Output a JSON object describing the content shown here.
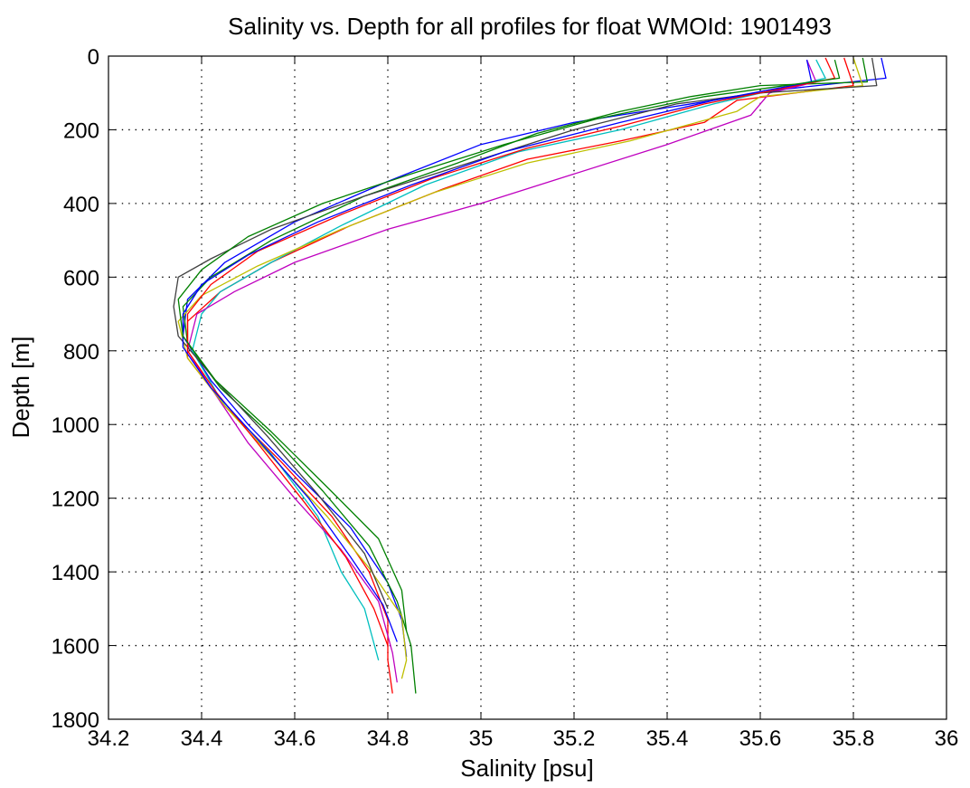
{
  "chart_data": {
    "type": "line",
    "title": "Salinity vs. Depth for all profiles for float WMOId: 1901493",
    "xlabel": "Salinity [psu]",
    "ylabel": "Depth [m]",
    "xlim": [
      34.2,
      36
    ],
    "ylim": [
      0,
      1800
    ],
    "y_inverted": true,
    "grid": true,
    "x_ticks": [
      "34.2",
      "34.4",
      "34.6",
      "34.8",
      "35",
      "35.2",
      "35.4",
      "35.6",
      "35.8",
      "36"
    ],
    "y_ticks": [
      "0",
      "200",
      "400",
      "600",
      "800",
      "1000",
      "1200",
      "1400",
      "1600",
      "1800"
    ],
    "series": [
      {
        "color": "#0000ff",
        "points": [
          [
            35.86,
            5
          ],
          [
            35.87,
            60
          ],
          [
            35.65,
            90
          ],
          [
            35.4,
            140
          ],
          [
            35.2,
            180
          ],
          [
            35.0,
            240
          ],
          [
            34.8,
            340
          ],
          [
            34.6,
            450
          ],
          [
            34.45,
            560
          ],
          [
            34.37,
            660
          ],
          [
            34.36,
            760
          ],
          [
            34.42,
            880
          ],
          [
            34.5,
            1000
          ],
          [
            34.6,
            1130
          ],
          [
            34.72,
            1280
          ],
          [
            34.8,
            1430
          ],
          [
            34.83,
            1530
          ],
          [
            34.84,
            1630
          ]
        ]
      },
      {
        "color": "#008000",
        "points": [
          [
            35.82,
            5
          ],
          [
            35.83,
            70
          ],
          [
            35.6,
            80
          ],
          [
            35.45,
            110
          ],
          [
            35.3,
            150
          ],
          [
            35.12,
            210
          ],
          [
            34.95,
            290
          ],
          [
            34.75,
            380
          ],
          [
            34.55,
            500
          ],
          [
            34.42,
            600
          ],
          [
            34.36,
            680
          ],
          [
            34.37,
            780
          ],
          [
            34.44,
            900
          ],
          [
            34.55,
            1030
          ],
          [
            34.66,
            1180
          ],
          [
            34.76,
            1330
          ],
          [
            34.82,
            1480
          ],
          [
            34.85,
            1600
          ],
          [
            34.86,
            1730
          ]
        ]
      },
      {
        "color": "#ff0000",
        "points": [
          [
            35.78,
            5
          ],
          [
            35.8,
            80
          ],
          [
            35.55,
            120
          ],
          [
            35.48,
            180
          ],
          [
            35.3,
            230
          ],
          [
            35.1,
            280
          ],
          [
            34.92,
            360
          ],
          [
            34.72,
            460
          ],
          [
            34.55,
            560
          ],
          [
            34.44,
            640
          ],
          [
            34.37,
            720
          ],
          [
            34.37,
            820
          ],
          [
            34.45,
            950
          ],
          [
            34.57,
            1100
          ],
          [
            34.68,
            1250
          ],
          [
            34.76,
            1400
          ],
          [
            34.8,
            1530
          ],
          [
            34.8,
            1640
          ],
          [
            34.81,
            1730
          ]
        ]
      },
      {
        "color": "#00bfbf",
        "points": [
          [
            35.72,
            10
          ],
          [
            35.74,
            60
          ],
          [
            35.5,
            130
          ],
          [
            35.3,
            200
          ],
          [
            35.08,
            260
          ],
          [
            34.88,
            350
          ],
          [
            34.7,
            460
          ],
          [
            34.55,
            560
          ],
          [
            34.44,
            640
          ],
          [
            34.4,
            700
          ],
          [
            34.38,
            800
          ],
          [
            34.44,
            930
          ],
          [
            34.55,
            1080
          ],
          [
            34.65,
            1250
          ],
          [
            34.7,
            1400
          ],
          [
            34.75,
            1500
          ],
          [
            34.78,
            1640
          ]
        ]
      },
      {
        "color": "#bf00bf",
        "points": [
          [
            35.7,
            10
          ],
          [
            35.72,
            70
          ],
          [
            35.62,
            100
          ],
          [
            35.58,
            160
          ],
          [
            35.4,
            240
          ],
          [
            35.2,
            320
          ],
          [
            35.0,
            400
          ],
          [
            34.8,
            470
          ],
          [
            34.6,
            560
          ],
          [
            34.47,
            640
          ],
          [
            34.39,
            700
          ],
          [
            34.37,
            800
          ],
          [
            34.42,
            900
          ],
          [
            34.5,
            1050
          ],
          [
            34.6,
            1200
          ],
          [
            34.7,
            1340
          ],
          [
            34.78,
            1480
          ],
          [
            34.81,
            1620
          ],
          [
            34.82,
            1700
          ]
        ]
      },
      {
        "color": "#bfbf00",
        "points": [
          [
            35.8,
            5
          ],
          [
            35.82,
            80
          ],
          [
            35.6,
            110
          ],
          [
            35.55,
            150
          ],
          [
            35.32,
            230
          ],
          [
            35.1,
            290
          ],
          [
            34.9,
            370
          ],
          [
            34.7,
            470
          ],
          [
            34.52,
            570
          ],
          [
            34.4,
            650
          ],
          [
            34.35,
            720
          ],
          [
            34.37,
            820
          ],
          [
            34.45,
            950
          ],
          [
            34.56,
            1100
          ],
          [
            34.67,
            1250
          ],
          [
            34.76,
            1390
          ],
          [
            34.83,
            1520
          ],
          [
            34.84,
            1640
          ],
          [
            34.83,
            1690
          ]
        ]
      },
      {
        "color": "#404040",
        "points": [
          [
            35.84,
            5
          ],
          [
            35.85,
            80
          ],
          [
            35.6,
            100
          ],
          [
            35.42,
            130
          ],
          [
            35.2,
            200
          ],
          [
            35.0,
            280
          ],
          [
            34.75,
            380
          ],
          [
            34.55,
            470
          ],
          [
            34.42,
            550
          ],
          [
            34.35,
            600
          ],
          [
            34.34,
            680
          ],
          [
            34.35,
            760
          ],
          [
            34.43,
            880
          ],
          [
            34.54,
            1030
          ],
          [
            34.65,
            1190
          ],
          [
            34.75,
            1350
          ],
          [
            34.8,
            1500
          ]
        ]
      },
      {
        "color": "#ff0000",
        "points": [
          [
            35.74,
            5
          ],
          [
            35.76,
            60
          ],
          [
            35.48,
            130
          ],
          [
            35.3,
            190
          ],
          [
            35.1,
            250
          ],
          [
            34.9,
            330
          ],
          [
            34.7,
            430
          ],
          [
            34.52,
            530
          ],
          [
            34.42,
            620
          ],
          [
            34.37,
            700
          ],
          [
            34.37,
            800
          ],
          [
            34.43,
            910
          ],
          [
            34.52,
            1050
          ],
          [
            34.62,
            1210
          ],
          [
            34.71,
            1360
          ],
          [
            34.77,
            1500
          ],
          [
            34.8,
            1600
          ]
        ]
      },
      {
        "color": "#0000ff",
        "points": [
          [
            35.7,
            10
          ],
          [
            35.71,
            70
          ],
          [
            35.5,
            120
          ],
          [
            35.3,
            180
          ],
          [
            35.05,
            260
          ],
          [
            34.85,
            350
          ],
          [
            34.65,
            450
          ],
          [
            34.5,
            540
          ],
          [
            34.4,
            620
          ],
          [
            34.36,
            700
          ],
          [
            34.36,
            790
          ],
          [
            34.42,
            900
          ],
          [
            34.52,
            1040
          ],
          [
            34.63,
            1200
          ],
          [
            34.72,
            1360
          ],
          [
            34.79,
            1490
          ],
          [
            34.82,
            1590
          ]
        ]
      },
      {
        "color": "#008000",
        "points": [
          [
            35.76,
            10
          ],
          [
            35.77,
            60
          ],
          [
            35.48,
            110
          ],
          [
            35.25,
            170
          ],
          [
            35.05,
            240
          ],
          [
            34.85,
            320
          ],
          [
            34.66,
            400
          ],
          [
            34.5,
            490
          ],
          [
            34.4,
            580
          ],
          [
            34.35,
            660
          ],
          [
            34.36,
            760
          ],
          [
            34.43,
            880
          ],
          [
            34.55,
            1020
          ],
          [
            34.67,
            1170
          ],
          [
            34.78,
            1310
          ],
          [
            34.83,
            1450
          ],
          [
            34.84,
            1560
          ]
        ]
      }
    ]
  }
}
